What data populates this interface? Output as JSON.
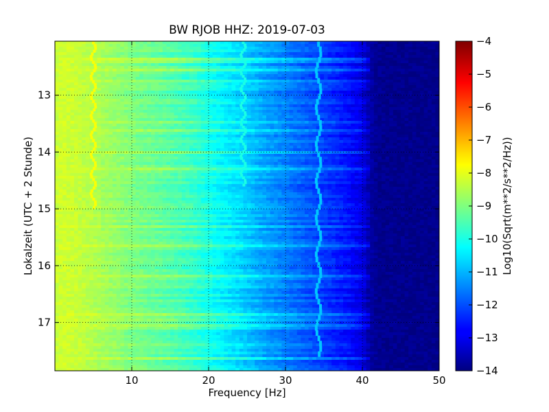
{
  "chart_data": {
    "type": "heatmap",
    "title": "BW RJOB HHZ: 2019-07-03",
    "xlabel": "Frequency [Hz]",
    "ylabel": "Lokalzeit (UTC + 2 Stunde)",
    "xlim": [
      0,
      50
    ],
    "ylim": [
      12.05,
      17.85
    ],
    "y_inverted": true,
    "x_ticks": [
      10,
      20,
      30,
      40,
      50
    ],
    "x_tick_labels": [
      "10",
      "20",
      "30",
      "40",
      "50"
    ],
    "y_ticks": [
      13,
      14,
      15,
      16,
      17
    ],
    "y_tick_labels": [
      "13",
      "14",
      "15",
      "16",
      "17"
    ],
    "grid": true,
    "colormap": "jet",
    "colorbar": {
      "label": "Log10(Sqrt(m**2/s**2/Hz))",
      "range": [
        -14,
        -4
      ],
      "ticks": [
        -4,
        -5,
        -6,
        -7,
        -8,
        -9,
        -10,
        -11,
        -12,
        -13,
        -14
      ],
      "tick_labels": [
        "−4",
        "−5",
        "−6",
        "−7",
        "−8",
        "−9",
        "−10",
        "−11",
        "−12",
        "−13",
        "−14"
      ]
    },
    "spectrum_profile": {
      "frequency_hz": [
        0,
        1,
        3,
        6,
        10,
        14,
        18,
        21,
        24,
        27,
        30,
        33,
        36,
        38,
        40,
        41,
        42,
        50
      ],
      "value": [
        -8.3,
        -8.2,
        -8.3,
        -8.6,
        -9.0,
        -9.3,
        -9.7,
        -10.2,
        -10.6,
        -11.1,
        -11.5,
        -11.9,
        -12.3,
        -12.6,
        -13.0,
        -13.6,
        -13.85,
        -13.9
      ]
    },
    "features": [
      {
        "name": "line near 5 Hz",
        "frequency_hz": 5,
        "time_range": [
          12.05,
          15.0
        ],
        "value": -7.8
      },
      {
        "name": "wandering line ~24-25 Hz",
        "frequency_hz": 24.5,
        "time_range": [
          12.05,
          14.6
        ],
        "value": -10.0
      },
      {
        "name": "wandering line ~34-35 Hz",
        "frequency_hz": 34.3,
        "time_range": [
          12.05,
          17.6
        ],
        "value": -10.8
      }
    ]
  }
}
